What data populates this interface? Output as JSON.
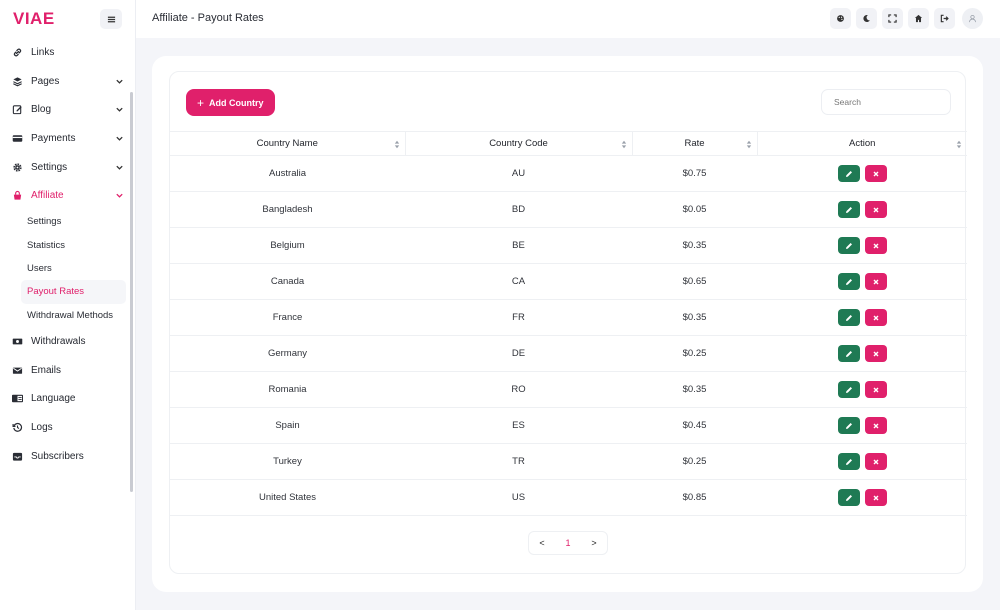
{
  "brand": {
    "logo": "VIAE",
    "accent": "#e0206b"
  },
  "header": {
    "title": "Affiliate - Payout Rates"
  },
  "sidebar": {
    "items": [
      {
        "label": "Links",
        "icon": "link-icon",
        "expandable": false
      },
      {
        "label": "Pages",
        "icon": "layers-icon",
        "expandable": true
      },
      {
        "label": "Blog",
        "icon": "edit-icon",
        "expandable": true
      },
      {
        "label": "Payments",
        "icon": "credit-card-icon",
        "expandable": true
      },
      {
        "label": "Settings",
        "icon": "gear-icon",
        "expandable": true
      },
      {
        "label": "Affiliate",
        "icon": "bag-icon",
        "expandable": true,
        "active": true
      },
      {
        "label": "Withdrawals",
        "icon": "money-icon",
        "expandable": false
      },
      {
        "label": "Emails",
        "icon": "envelope-icon",
        "expandable": false
      },
      {
        "label": "Language",
        "icon": "language-icon",
        "expandable": false
      },
      {
        "label": "Logs",
        "icon": "history-icon",
        "expandable": false
      },
      {
        "label": "Subscribers",
        "icon": "inbox-icon",
        "expandable": false
      }
    ],
    "affiliate_sub": [
      {
        "label": "Settings"
      },
      {
        "label": "Statistics"
      },
      {
        "label": "Users"
      },
      {
        "label": "Payout Rates",
        "active": true
      },
      {
        "label": "Withdrawal Methods"
      }
    ]
  },
  "toolbar": {
    "add_label": "Add Country",
    "search_placeholder": "Search"
  },
  "table": {
    "headers": [
      "Country Name",
      "Country Code",
      "Rate",
      "Action"
    ],
    "rows": [
      {
        "name": "Australia",
        "code": "AU",
        "rate": "$0.75"
      },
      {
        "name": "Bangladesh",
        "code": "BD",
        "rate": "$0.05"
      },
      {
        "name": "Belgium",
        "code": "BE",
        "rate": "$0.35"
      },
      {
        "name": "Canada",
        "code": "CA",
        "rate": "$0.65"
      },
      {
        "name": "France",
        "code": "FR",
        "rate": "$0.35"
      },
      {
        "name": "Germany",
        "code": "DE",
        "rate": "$0.25"
      },
      {
        "name": "Romania",
        "code": "RO",
        "rate": "$0.35"
      },
      {
        "name": "Spain",
        "code": "ES",
        "rate": "$0.45"
      },
      {
        "name": "Turkey",
        "code": "TR",
        "rate": "$0.25"
      },
      {
        "name": "United States",
        "code": "US",
        "rate": "$0.85"
      }
    ]
  },
  "pagination": {
    "prev": "<",
    "current": "1",
    "next": ">"
  }
}
